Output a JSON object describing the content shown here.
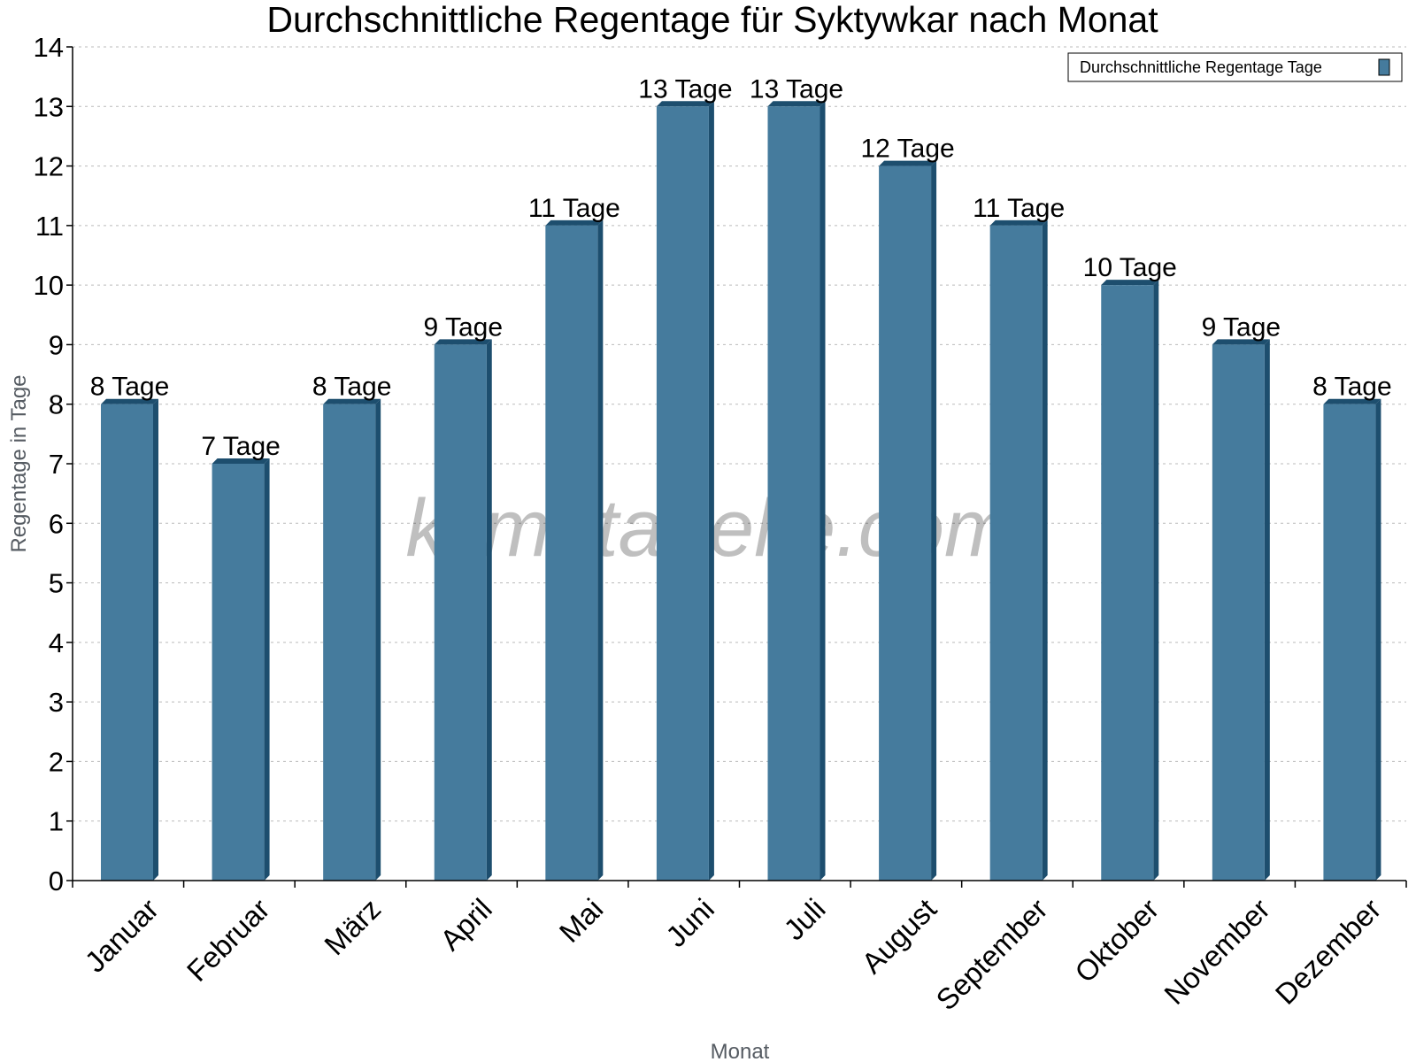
{
  "chart_data": {
    "type": "bar",
    "title": "Durchschnittliche Regentage für Syktywkar nach Monat",
    "xlabel": "Monat",
    "ylabel": "Regentage in Tage",
    "ylim": [
      0,
      14
    ],
    "yticks": [
      0,
      1,
      2,
      3,
      4,
      5,
      6,
      7,
      8,
      9,
      10,
      11,
      12,
      13,
      14
    ],
    "grid": true,
    "legend_position": "top-right",
    "categories": [
      "Januar",
      "Februar",
      "März",
      "April",
      "Mai",
      "Juni",
      "Juli",
      "August",
      "September",
      "Oktober",
      "November",
      "Dezember"
    ],
    "series": [
      {
        "name": "Durchschnittliche Regentage Tage",
        "values": [
          8,
          7,
          8,
          9,
          11,
          13,
          13,
          12,
          11,
          10,
          9,
          8
        ],
        "color": "#457b9d",
        "side_color": "#1d4e6e"
      }
    ],
    "data_labels": [
      "8 Tage",
      "7 Tage",
      "8 Tage",
      "9 Tage",
      "11 Tage",
      "13 Tage",
      "13 Tage",
      "12 Tage",
      "11 Tage",
      "10 Tage",
      "9 Tage",
      "8 Tage"
    ]
  },
  "watermark": "klimatabelle.com"
}
